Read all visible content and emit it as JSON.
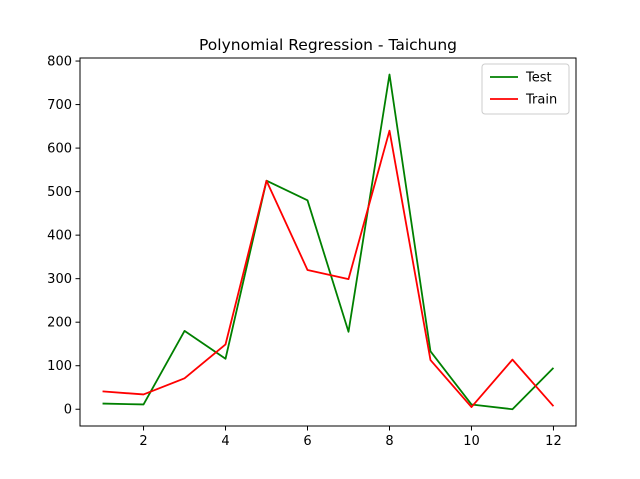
{
  "chart_data": {
    "type": "line",
    "title": "Polynomial Regression - Taichung",
    "xlabel": "",
    "ylabel": "",
    "x": [
      1,
      2,
      3,
      4,
      5,
      6,
      7,
      8,
      9,
      10,
      11,
      12
    ],
    "xlim": [
      0.45,
      12.55
    ],
    "ylim": [
      -38.5,
      807
    ],
    "xticks": [
      2,
      4,
      6,
      8,
      10,
      12
    ],
    "yticks": [
      0,
      100,
      200,
      300,
      400,
      500,
      600,
      700,
      800
    ],
    "grid": false,
    "legend_position": "top-right",
    "series": [
      {
        "name": "Test",
        "color": "#008000",
        "values": [
          13,
          11,
          180,
          116,
          525,
          480,
          178,
          769,
          133,
          11,
          0,
          95
        ]
      },
      {
        "name": "Train",
        "color": "#ff0000",
        "values": [
          41,
          34,
          71,
          149,
          525,
          320,
          299,
          640,
          113,
          5,
          114,
          7
        ]
      }
    ]
  }
}
